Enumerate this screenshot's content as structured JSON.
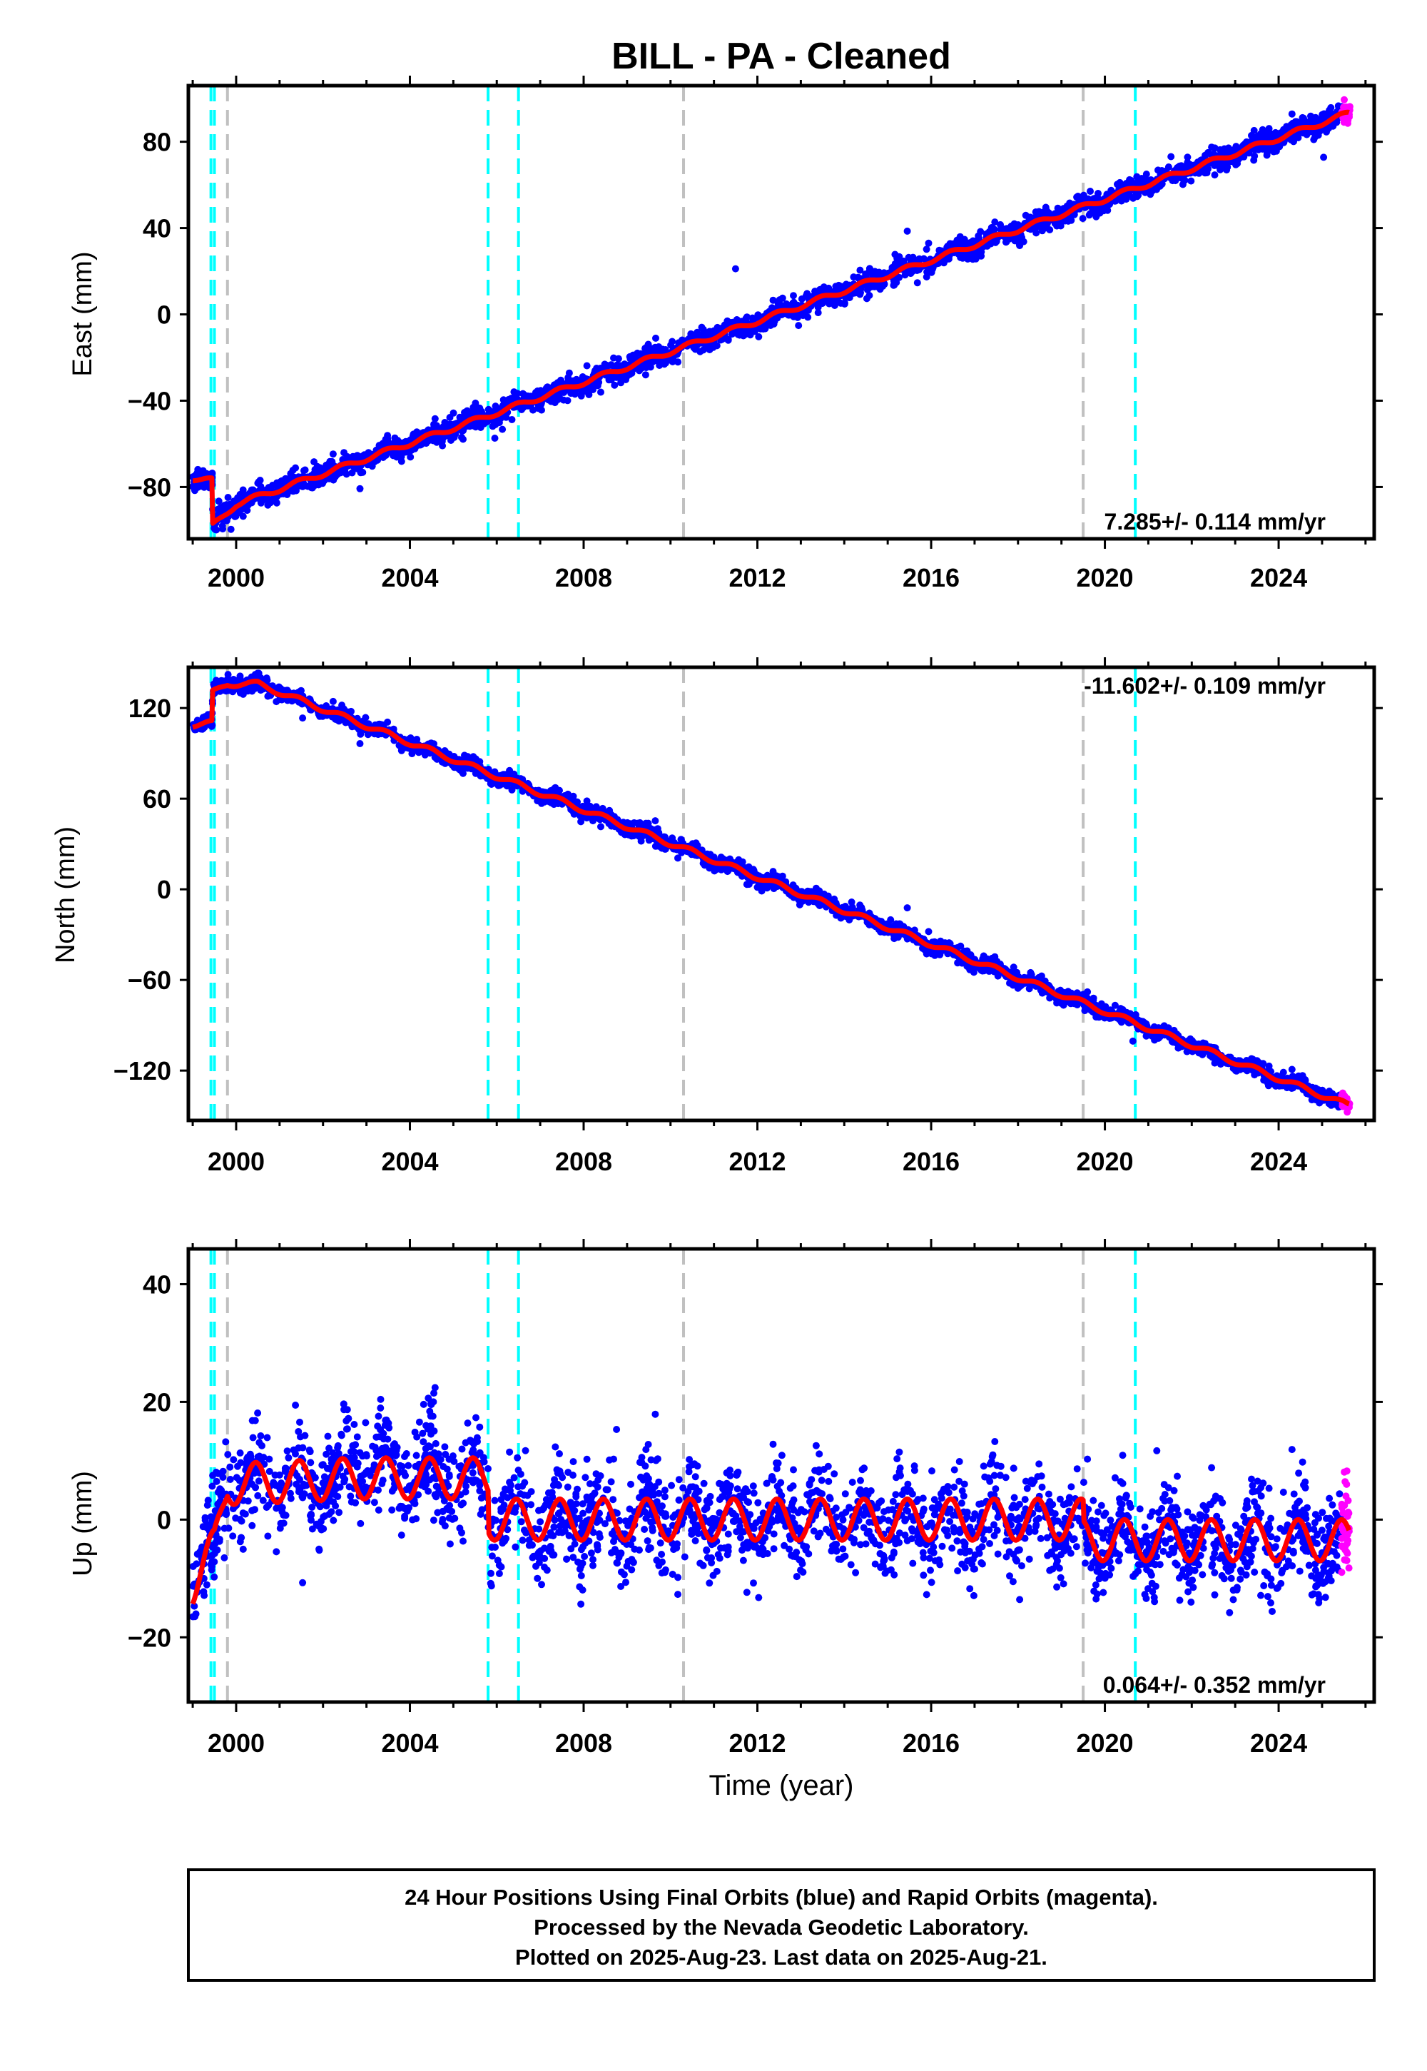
{
  "title": "BILL  - PA - Cleaned",
  "xlabel": "Time (year)",
  "x_ticks": [
    "2000",
    "2004",
    "2008",
    "2012",
    "2016",
    "2020",
    "2024"
  ],
  "colors": {
    "final_orbits": "#0000ff",
    "rapid_orbits": "#ff00ff",
    "model": "#ff0000",
    "antenna_change": "#00ffff",
    "equipment_change": "#c0c0c0"
  },
  "footer": {
    "line1": "24 Hour Positions Using Final Orbits (blue) and Rapid Orbits (magenta).",
    "line2": "Processed by the Nevada Geodetic Laboratory.",
    "line3": "Plotted on 2025-Aug-23. Last data on 2025-Aug-21."
  },
  "chart_data": [
    {
      "type": "scatter",
      "ylabel": "East (mm)",
      "y_ticks": [
        "80",
        "40",
        "0",
        "−40",
        "−80"
      ],
      "rate_label": "7.285+/- 0.114 mm/yr",
      "xlim": [
        1998.9,
        2026.2
      ],
      "ylim": [
        -104,
        106
      ],
      "y_tick_values": [
        80,
        40,
        0,
        -40,
        -80
      ],
      "x_tick_values": [
        2000,
        2004,
        2008,
        2012,
        2016,
        2020,
        2024
      ],
      "steps": [
        {
          "t": 1999.45,
          "dy": -21
        }
      ],
      "trend_points": [
        [
          1999.0,
          -76
        ],
        [
          1999.45,
          -77
        ],
        [
          1999.46,
          -98
        ],
        [
          2000.0,
          -88
        ],
        [
          2025.6,
          93
        ]
      ],
      "seasonal_amplitude": 1.2,
      "noise": 2.5,
      "series": [
        {
          "name": "Final Orbits (blue)",
          "range": [
            1999.0,
            2025.45
          ]
        },
        {
          "name": "Rapid Orbits (magenta)",
          "range": [
            2025.45,
            2025.64
          ]
        }
      ],
      "cyan_lines": [
        1999.42,
        1999.5,
        2005.8,
        2006.5,
        2020.7
      ],
      "gray_lines": [
        1999.8,
        2010.3,
        2019.5
      ]
    },
    {
      "type": "scatter",
      "ylabel": "North (mm)",
      "y_ticks": [
        "120",
        "60",
        "0",
        "−60",
        "−120"
      ],
      "rate_label": "-11.602+/- 0.109 mm/yr",
      "xlim": [
        1998.9,
        2026.2
      ],
      "ylim": [
        -153,
        147
      ],
      "y_tick_values": [
        120,
        60,
        0,
        -60,
        -120
      ],
      "x_tick_values": [
        2000,
        2004,
        2008,
        2012,
        2016,
        2020,
        2024
      ],
      "trend_points": [
        [
          1999.0,
          109
        ],
        [
          1999.45,
          110
        ],
        [
          1999.46,
          130
        ],
        [
          1999.8,
          136
        ],
        [
          2000.5,
          136
        ],
        [
          2025.6,
          -143
        ]
      ],
      "seasonal_amplitude": 1.8,
      "noise": 2.5,
      "series": [
        {
          "name": "Final Orbits (blue)",
          "range": [
            1999.0,
            2025.45
          ]
        },
        {
          "name": "Rapid Orbits (magenta)",
          "range": [
            2025.45,
            2025.64
          ]
        }
      ],
      "cyan_lines": [
        1999.42,
        1999.5,
        2005.8,
        2006.5,
        2020.7
      ],
      "gray_lines": [
        1999.8,
        2010.3,
        2019.5
      ]
    },
    {
      "type": "scatter",
      "ylabel": "Up (mm)",
      "y_ticks": [
        "40",
        "20",
        "0",
        "−20"
      ],
      "rate_label": "0.064+/- 0.352 mm/yr",
      "xlim": [
        1998.9,
        2026.2
      ],
      "ylim": [
        -31,
        46
      ],
      "y_tick_values": [
        40,
        20,
        0,
        -20
      ],
      "x_tick_values": [
        2000,
        2004,
        2008,
        2012,
        2016,
        2020,
        2024
      ],
      "trend_points": [
        [
          1999.0,
          -11
        ],
        [
          1999.5,
          -5
        ],
        [
          1999.8,
          6
        ],
        [
          2002.8,
          7
        ],
        [
          2005.8,
          7
        ],
        [
          2005.81,
          0
        ],
        [
          2019.5,
          0
        ],
        [
          2019.51,
          -3.5
        ],
        [
          2025.6,
          -3.5
        ]
      ],
      "seasonal_amplitude": 3.5,
      "noise": 4.0,
      "series": [
        {
          "name": "Final Orbits (blue)",
          "range": [
            1999.0,
            2025.45
          ]
        },
        {
          "name": "Rapid Orbits (magenta)",
          "range": [
            2025.45,
            2025.64
          ]
        }
      ],
      "cyan_lines": [
        1999.42,
        1999.5,
        2005.8,
        2006.5,
        2020.7
      ],
      "gray_lines": [
        1999.8,
        2010.3,
        2019.5
      ]
    }
  ]
}
